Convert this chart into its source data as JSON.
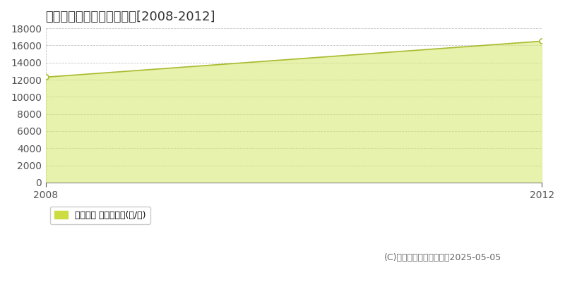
{
  "title": "野洲市冨波　林地価格推移[2008-2012]",
  "x_values": [
    2008,
    2012
  ],
  "y_values": [
    12300,
    16500
  ],
  "fill_color": "#d4e96b",
  "fill_alpha": 0.55,
  "line_color": "#aabb33",
  "marker_edge_color": "#aabb33",
  "xlim": [
    2008,
    2012
  ],
  "ylim": [
    0,
    18000
  ],
  "yticks": [
    0,
    2000,
    4000,
    6000,
    8000,
    10000,
    12000,
    14000,
    16000,
    18000
  ],
  "xticks": [
    2008,
    2012
  ],
  "grid_color": "#aaaaaa",
  "background_color": "#ffffff",
  "fig_background_color": "#ffffff",
  "legend_label": "林地価格 平均坪単価(円/坪)",
  "legend_color": "#ccdd44",
  "copyright_text": "(C)土地価格ドットコム　2025-05-05",
  "title_fontsize": 13,
  "tick_fontsize": 10,
  "legend_fontsize": 9,
  "copyright_fontsize": 9
}
